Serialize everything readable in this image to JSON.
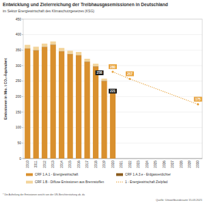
{
  "chart_data": {
    "type": "bar",
    "title": "Entwicklung und Zielerreichung der Treibhausgasemissionen in Deutschland",
    "subtitle": "im Sektor Energiewirtschaft des Klimaschutzgesetzes (KSG)",
    "y_label": "Emissionen in Mio. t CO₂-Äquivalent",
    "footnote": "* Die Aufteilung der Emissionen weicht von der UN-Berichterstattung ab, da",
    "source": "Quelle: Umweltbundesamt 15.03.2021",
    "categories": [
      "2010",
      "2011",
      "2012",
      "2013",
      "2014",
      "2015",
      "2016",
      "2017",
      "2018",
      "2019",
      "2020",
      "2021",
      "2022",
      "2023",
      "2024",
      "2025",
      "2026",
      "2027",
      "2028",
      "2029",
      "2030"
    ],
    "stacked": true,
    "grid": true,
    "legend": "bottom",
    "ylim": [
      0,
      450
    ],
    "yticks": [
      0,
      50,
      100,
      150,
      200,
      250,
      300,
      350,
      400,
      450
    ],
    "series": [
      {
        "name": "CRF 1.A.1 - Energiewirtschaft",
        "type": "bar",
        "color": "#d9902e",
        "values": [
          355,
          349,
          360,
          367,
          346,
          337,
          333,
          312,
          297,
          250,
          214,
          null,
          null,
          null,
          null,
          null,
          null,
          null,
          null,
          null,
          null
        ]
      },
      {
        "name": "CRF 1.A.3.e - Erdgasverdichter",
        "type": "bar",
        "color": "#8a5a1c",
        "values": [
          1,
          1,
          1,
          1,
          1,
          1,
          1,
          1,
          1,
          1,
          1,
          null,
          null,
          null,
          null,
          null,
          null,
          null,
          null,
          null,
          null
        ]
      },
      {
        "name": "CRF 1.B - Diffuse Emissionen aus Brennstoffen",
        "type": "bar",
        "color": "#f3d49a",
        "values": [
          11,
          11,
          10,
          10,
          10,
          10,
          10,
          9,
          8,
          7,
          6,
          null,
          null,
          null,
          null,
          null,
          null,
          null,
          null,
          null,
          null
        ]
      },
      {
        "name": "1 - Energiewirtschaft Zielpfad",
        "type": "line",
        "color": "#e8a33c",
        "line_style": "dotted",
        "marker": "circle",
        "data_labels": true,
        "x": [
          "2020",
          "2022",
          "2030"
        ],
        "values": [
          280,
          257,
          175
        ]
      }
    ],
    "annotations": [
      {
        "category": "2019",
        "value": 258
      },
      {
        "category": "2020",
        "value": 221
      }
    ]
  }
}
